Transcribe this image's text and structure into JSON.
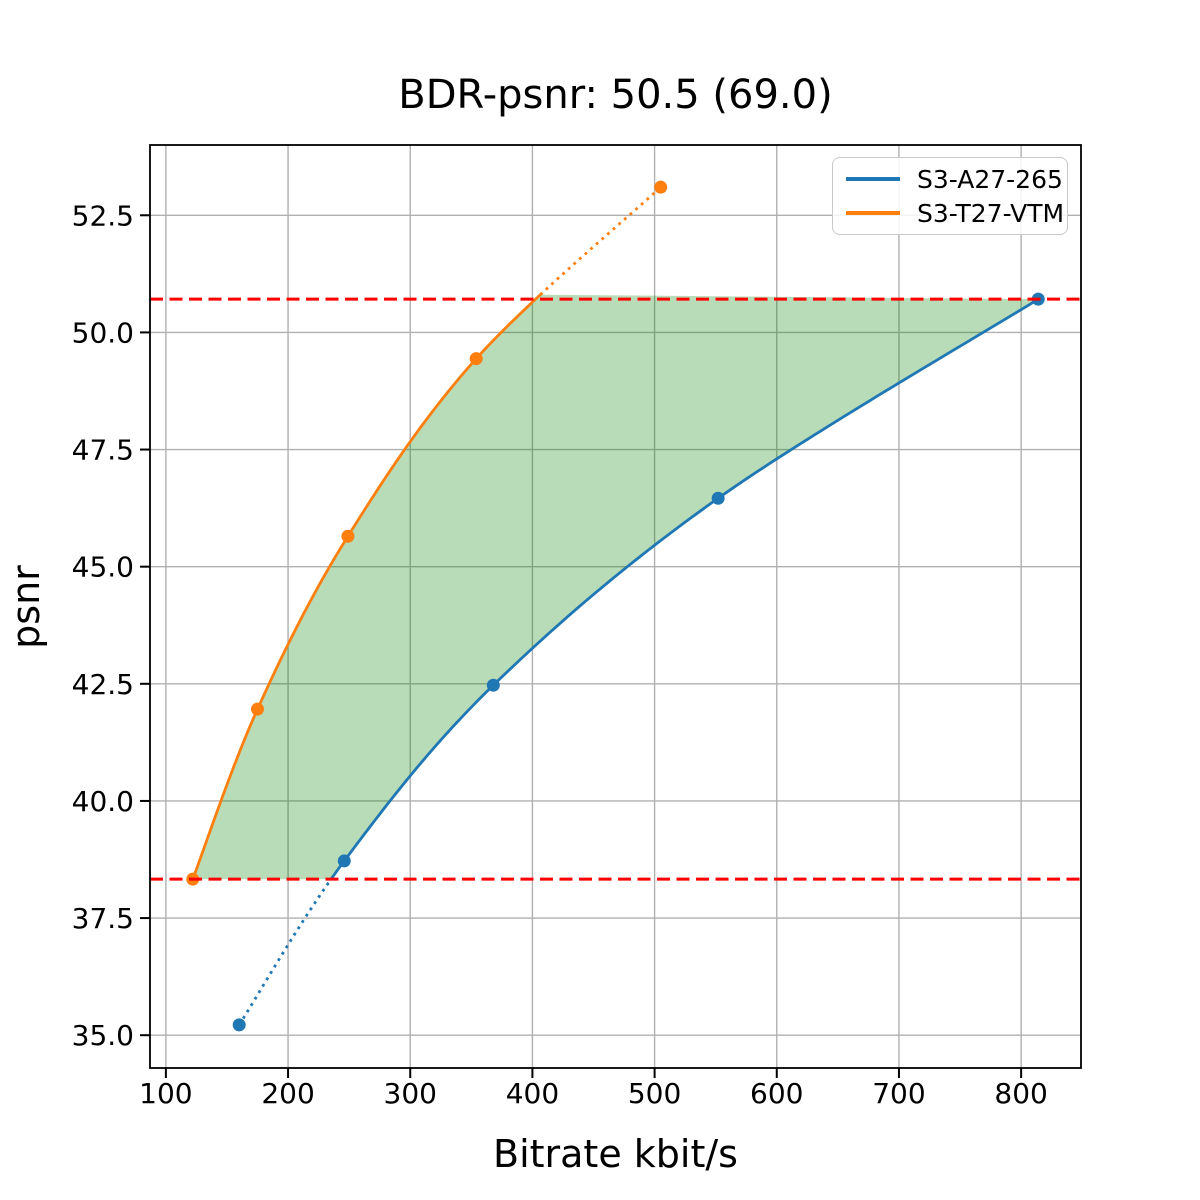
{
  "figure": {
    "title": "BDR-psnr: 50.5 (69.0)",
    "xlabel": "Bitrate kbit/s",
    "ylabel": "psnr"
  },
  "chart_data": {
    "type": "line",
    "title": "BDR-psnr: 50.5 (69.0)",
    "xlabel": "Bitrate kbit/s",
    "ylabel": "psnr",
    "xlim": [
      87,
      849
    ],
    "ylim": [
      34.3,
      54.0
    ],
    "grid": true,
    "grid_color": "#b0b0b0",
    "spine_color": "#000000",
    "legend_position": "upper right",
    "xticks": {
      "values": [
        100,
        200,
        300,
        400,
        500,
        600,
        700,
        800
      ],
      "labels": [
        "100",
        "200",
        "300",
        "400",
        "500",
        "600",
        "700",
        "800"
      ]
    },
    "yticks": {
      "values": [
        35.0,
        37.5,
        40.0,
        42.5,
        45.0,
        47.5,
        50.0,
        52.5
      ],
      "labels": [
        "35.0",
        "37.5",
        "40.0",
        "42.5",
        "45.0",
        "47.5",
        "50.0",
        "52.5"
      ]
    },
    "series": [
      {
        "name": "S3-A27-265",
        "color": "#1f77b4",
        "marker": "circle",
        "x": [
          160,
          246,
          368,
          552,
          814
        ],
        "y": [
          35.22,
          38.72,
          42.47,
          46.46,
          50.71
        ],
        "style_note": "solid inside common psnr range, dotted outside"
      },
      {
        "name": "S3-T27-VTM",
        "color": "#ff7f0e",
        "marker": "circle",
        "x": [
          122,
          175,
          249,
          354,
          505
        ],
        "y": [
          38.33,
          41.96,
          45.65,
          49.44,
          53.1
        ],
        "style_note": "solid inside common psnr range, dotted outside"
      }
    ],
    "hlines": {
      "values": [
        38.33,
        50.71
      ],
      "color": "#ff0000",
      "style": "dashed"
    },
    "fill_between": {
      "color": "#008000",
      "opacity": 0.28,
      "psnr_range": [
        38.33,
        50.71
      ]
    }
  }
}
